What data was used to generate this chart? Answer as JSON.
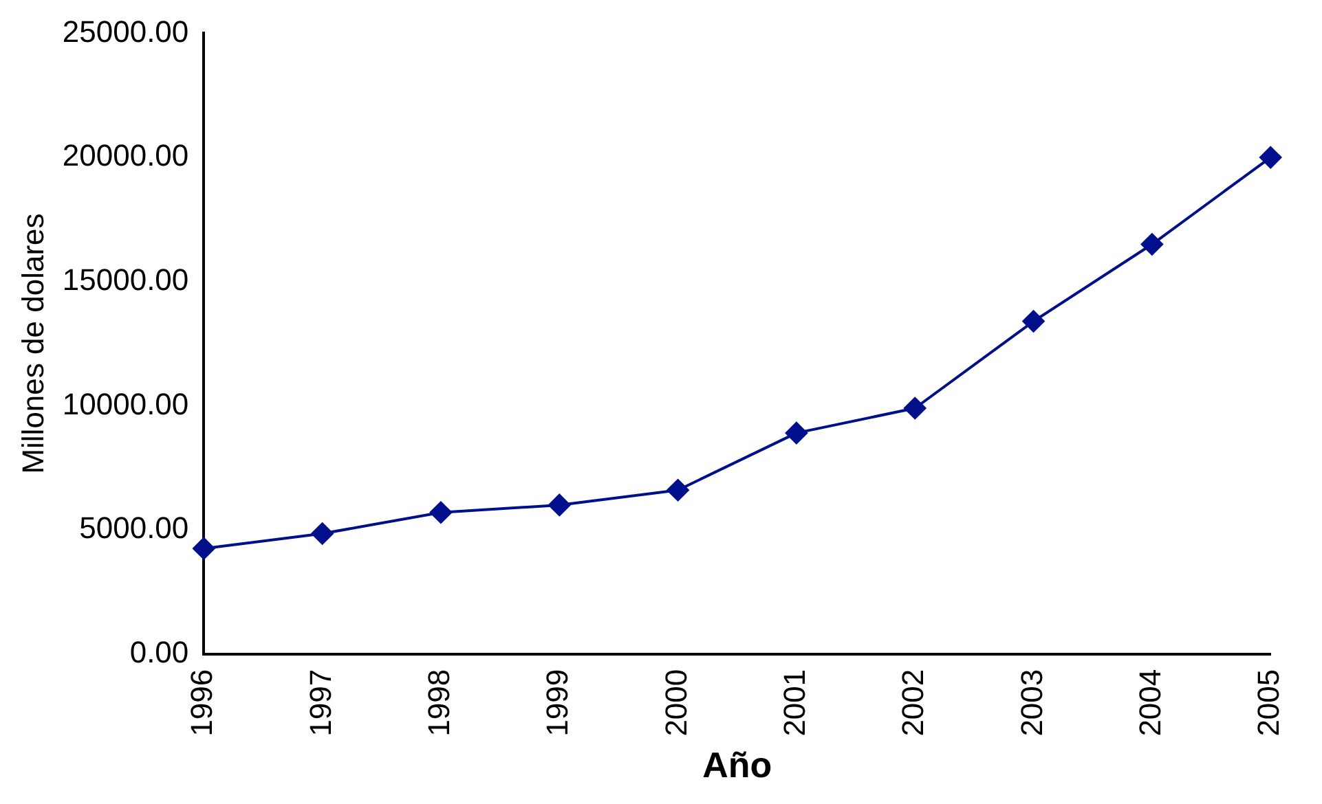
{
  "chart_data": {
    "type": "line",
    "xlabel": "Año",
    "ylabel": "Millones de dolares",
    "categories": [
      "1996",
      "1997",
      "1998",
      "1999",
      "2000",
      "2001",
      "2002",
      "2003",
      "2004",
      "2005"
    ],
    "series": [
      {
        "color": "#000f8c",
        "values": [
          4250,
          4850,
          5700,
          6000,
          6600,
          8900,
          9900,
          13400,
          16500,
          20000
        ]
      }
    ],
    "ylim": [
      0,
      25000
    ],
    "yticks": [
      {
        "value": 0,
        "label": "0.00"
      },
      {
        "value": 5000,
        "label": "5000.00"
      },
      {
        "value": 10000,
        "label": "10000.00"
      },
      {
        "value": 15000,
        "label": "15000.00"
      },
      {
        "value": 20000,
        "label": "20000.00"
      },
      {
        "value": 25000,
        "label": "25000.00"
      }
    ],
    "grid": false,
    "legend": false,
    "marker": "diamond",
    "line_style": "solid"
  }
}
